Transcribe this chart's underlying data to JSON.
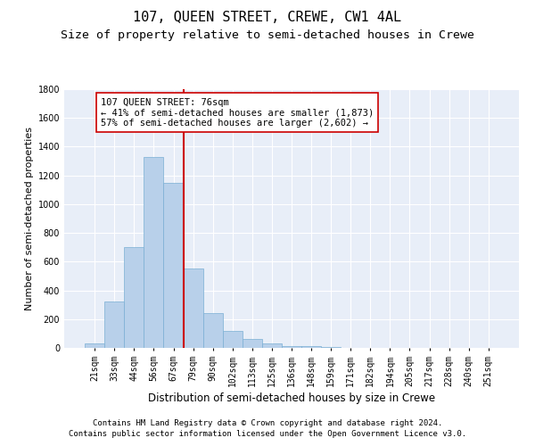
{
  "title": "107, QUEEN STREET, CREWE, CW1 4AL",
  "subtitle": "Size of property relative to semi-detached houses in Crewe",
  "xlabel": "Distribution of semi-detached houses by size in Crewe",
  "ylabel": "Number of semi-detached properties",
  "bin_labels": [
    "21sqm",
    "33sqm",
    "44sqm",
    "56sqm",
    "67sqm",
    "79sqm",
    "90sqm",
    "102sqm",
    "113sqm",
    "125sqm",
    "136sqm",
    "148sqm",
    "159sqm",
    "171sqm",
    "182sqm",
    "194sqm",
    "205sqm",
    "217sqm",
    "228sqm",
    "240sqm",
    "251sqm"
  ],
  "bar_heights": [
    30,
    320,
    700,
    1330,
    1150,
    550,
    240,
    120,
    65,
    30,
    15,
    10,
    5,
    3,
    2,
    1,
    0,
    0,
    0,
    0,
    0
  ],
  "bar_color": "#b8d0ea",
  "bar_edgecolor": "#7aafd4",
  "vline_color": "#cc0000",
  "vline_x": 4.5,
  "annotation_text": "107 QUEEN STREET: 76sqm\n← 41% of semi-detached houses are smaller (1,873)\n57% of semi-detached houses are larger (2,602) →",
  "annotation_box_facecolor": "white",
  "annotation_box_edgecolor": "#cc0000",
  "ylim": [
    0,
    1800
  ],
  "yticks": [
    0,
    200,
    400,
    600,
    800,
    1000,
    1200,
    1400,
    1600,
    1800
  ],
  "background_color": "#e8eef8",
  "grid_color": "white",
  "title_fontsize": 11,
  "subtitle_fontsize": 9.5,
  "ylabel_fontsize": 8,
  "xlabel_fontsize": 8.5,
  "tick_fontsize": 7,
  "annotation_fontsize": 7.5,
  "footnote1": "Contains HM Land Registry data © Crown copyright and database right 2024.",
  "footnote2": "Contains public sector information licensed under the Open Government Licence v3.0.",
  "footnote_fontsize": 6.5
}
